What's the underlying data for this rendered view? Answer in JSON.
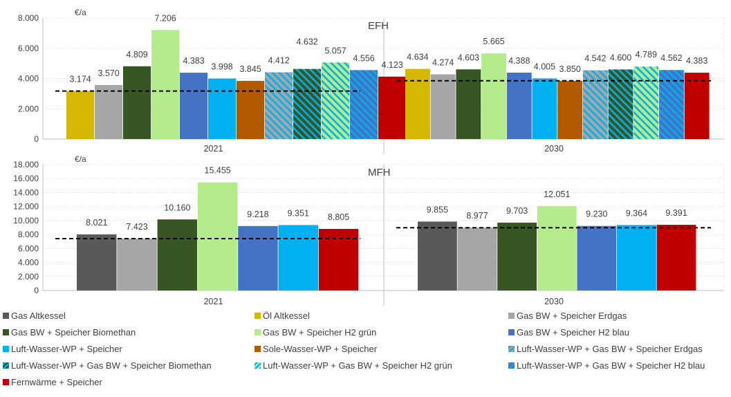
{
  "chart_data": [
    {
      "type": "bar",
      "panel_label": "EFH",
      "unit": "€/a",
      "ylim": [
        0,
        8000
      ],
      "yticks": [
        0,
        2000,
        4000,
        6000,
        8000
      ],
      "ytick_labels": [
        "0",
        "2.000",
        "4.000",
        "6.000",
        "8.000"
      ],
      "groups": [
        {
          "label": "2021",
          "reference_line": 3174,
          "bars": [
            {
              "series": "Öl Altkessel",
              "value": 3174,
              "label": "3.174"
            },
            {
              "series": "Gas BW + Speicher Erdgas",
              "value": 3570,
              "label": "3.570"
            },
            {
              "series": "Gas BW + Speicher Biomethan",
              "value": 4809,
              "label": "4.809"
            },
            {
              "series": "Gas BW + Speicher H2 grün",
              "value": 7206,
              "label": "7.206"
            },
            {
              "series": "Gas BW + Speicher H2 blau",
              "value": 4383,
              "label": "4.383"
            },
            {
              "series": "Luft-Wasser-WP + Speicher",
              "value": 3998,
              "label": "3.998"
            },
            {
              "series": "Sole-Wasser-WP + Speicher",
              "value": 3845,
              "label": "3.845"
            },
            {
              "series": "Luft-Wasser-WP + Gas BW + Speicher Erdgas",
              "value": 4412,
              "label": "4.412"
            },
            {
              "series": "Luft-Wasser-WP + Gas BW + Speicher Biomethan",
              "value": 4632,
              "label": "4.632"
            },
            {
              "series": "Luft-Wasser-WP + Gas BW + Speicher H2 grün",
              "value": 5057,
              "label": "5.057"
            },
            {
              "series": "Luft-Wasser-WP + Gas BW + Speicher H2 blau",
              "value": 4556,
              "label": "4.556"
            },
            {
              "series": "Fernwärme + Speicher",
              "value": 4123,
              "label": "4.123"
            }
          ]
        },
        {
          "label": "2030",
          "reference_line": 3850,
          "bars": [
            {
              "series": "Öl Altkessel",
              "value": 4634,
              "label": "4.634"
            },
            {
              "series": "Gas BW + Speicher Erdgas",
              "value": 4274,
              "label": "4.274"
            },
            {
              "series": "Gas BW + Speicher Biomethan",
              "value": 4603,
              "label": "4.603"
            },
            {
              "series": "Gas BW + Speicher H2 grün",
              "value": 5665,
              "label": "5.665"
            },
            {
              "series": "Gas BW + Speicher H2 blau",
              "value": 4388,
              "label": "4.388"
            },
            {
              "series": "Luft-Wasser-WP + Speicher",
              "value": 4005,
              "label": "4.005"
            },
            {
              "series": "Sole-Wasser-WP + Speicher",
              "value": 3850,
              "label": "3.850"
            },
            {
              "series": "Luft-Wasser-WP + Gas BW + Speicher Erdgas",
              "value": 4542,
              "label": "4.542"
            },
            {
              "series": "Luft-Wasser-WP + Gas BW + Speicher Biomethan",
              "value": 4600,
              "label": "4.600"
            },
            {
              "series": "Luft-Wasser-WP + Gas BW + Speicher H2 grün",
              "value": 4789,
              "label": "4.789"
            },
            {
              "series": "Luft-Wasser-WP + Gas BW + Speicher H2 blau",
              "value": 4562,
              "label": "4.562"
            },
            {
              "series": "Fernwärme + Speicher",
              "value": 4383,
              "label": "4.383"
            }
          ]
        }
      ]
    },
    {
      "type": "bar",
      "panel_label": "MFH",
      "unit": "€/a",
      "ylim": [
        0,
        18000
      ],
      "yticks": [
        0,
        2000,
        4000,
        6000,
        8000,
        10000,
        12000,
        14000,
        16000,
        18000
      ],
      "ytick_labels": [
        "0",
        "2.000",
        "4.000",
        "6.000",
        "8.000",
        "10.000",
        "12.000",
        "14.000",
        "16.000",
        "18.000"
      ],
      "groups": [
        {
          "label": "2021",
          "reference_line": 7423,
          "bars": [
            {
              "series": "Gas Altkessel",
              "value": 8021,
              "label": "8.021"
            },
            {
              "series": "Gas BW + Speicher Erdgas",
              "value": 7423,
              "label": "7.423"
            },
            {
              "series": "Gas BW + Speicher Biomethan",
              "value": 10160,
              "label": "10.160"
            },
            {
              "series": "Gas BW + Speicher H2 grün",
              "value": 15455,
              "label": "15.455"
            },
            {
              "series": "Gas BW + Speicher H2 blau",
              "value": 9218,
              "label": "9.218"
            },
            {
              "series": "Luft-Wasser-WP + Speicher",
              "value": 9351,
              "label": "9.351"
            },
            {
              "series": "Fernwärme + Speicher",
              "value": 8805,
              "label": "8.805"
            }
          ]
        },
        {
          "label": "2030",
          "reference_line": 8977,
          "bars": [
            {
              "series": "Gas Altkessel",
              "value": 9855,
              "label": "9.855"
            },
            {
              "series": "Gas BW + Speicher Erdgas",
              "value": 8977,
              "label": "8.977"
            },
            {
              "series": "Gas BW + Speicher Biomethan",
              "value": 9703,
              "label": "9.703"
            },
            {
              "series": "Gas BW + Speicher H2 grün",
              "value": 12051,
              "label": "12.051"
            },
            {
              "series": "Gas BW + Speicher H2 blau",
              "value": 9230,
              "label": "9.230"
            },
            {
              "series": "Luft-Wasser-WP + Speicher",
              "value": 9364,
              "label": "9.364"
            },
            {
              "series": "Fernwärme + Speicher",
              "value": 9391,
              "label": "9.391"
            }
          ]
        }
      ]
    }
  ],
  "legend": [
    {
      "name": "Gas Altkessel",
      "color": "#595959",
      "pattern": "solid"
    },
    {
      "name": "Öl Altkessel",
      "color": "#d4b800",
      "pattern": "solid"
    },
    {
      "name": "Gas BW + Speicher Erdgas",
      "color": "#a6a6a6",
      "pattern": "solid"
    },
    {
      "name": "Gas BW + Speicher Biomethan",
      "color": "#375623",
      "pattern": "solid"
    },
    {
      "name": "Gas BW + Speicher H2 grün",
      "color": "#b4ec8c",
      "pattern": "solid"
    },
    {
      "name": "Gas BW + Speicher H2 blau",
      "color": "#4472c4",
      "pattern": "solid"
    },
    {
      "name": "Luft-Wasser-WP + Speicher",
      "color": "#00b0f0",
      "pattern": "solid"
    },
    {
      "name": "Sole-Wasser-WP + Speicher",
      "color": "#b35a00",
      "pattern": "solid"
    },
    {
      "name": "Luft-Wasser-WP + Gas BW + Speicher Erdgas",
      "color": "#a6a6a6",
      "stripe": "#00b0f0",
      "pattern": "hatched"
    },
    {
      "name": "Luft-Wasser-WP + Gas BW + Speicher Biomethan",
      "color": "#375623",
      "stripe": "#00b0f0",
      "pattern": "hatched"
    },
    {
      "name": "Luft-Wasser-WP + Gas BW + Speicher H2 grün",
      "color": "#b4ec8c",
      "stripe": "#00b0f0",
      "pattern": "hatched"
    },
    {
      "name": "Luft-Wasser-WP + Gas BW + Speicher H2 blau",
      "color": "#4472c4",
      "stripe": "#00b0f0",
      "pattern": "hatched"
    },
    {
      "name": "Fernwärme + Speicher",
      "color": "#c00000",
      "pattern": "solid"
    }
  ],
  "colors": {
    "gridline": "#d9d9d9",
    "axis": "#bfbfbf",
    "text": "#404040",
    "reference_line": "#000000"
  }
}
